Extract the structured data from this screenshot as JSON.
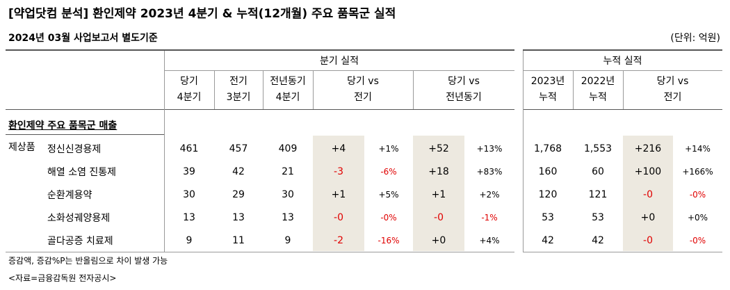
{
  "title": "[약업닷컴 분석] 환인제약 2023년 4분기 & 누적(12개월) 주요 품목군 실적",
  "subtitle": "2024년 03월 사업보고서 별도기준",
  "unit": "(단위: 억원)",
  "quarter_header": "분기 실적",
  "cumul_header": "누적 실적",
  "col_headers": {
    "q_cur": [
      "당기",
      "4분기"
    ],
    "q_prev": [
      "전기",
      "3분기"
    ],
    "q_yoy": [
      "전년동기",
      "4분기"
    ],
    "q_vs_prev": [
      "당기 vs",
      "전기"
    ],
    "q_vs_yoy": [
      "당기 vs",
      "전년동기"
    ],
    "c_2023": [
      "2023년",
      "누적"
    ],
    "c_2022": [
      "2022년",
      "누적"
    ],
    "c_vs": [
      "당기 vs",
      "전기"
    ]
  },
  "section_label": "환인제약 주요 품목군 매출",
  "category_label": "제상품",
  "rows": [
    {
      "name": "정신신경용제",
      "q_cur": "461",
      "q_prev": "457",
      "q_yoy": "409",
      "d_prev": "+4",
      "p_prev": "+1%",
      "d_yoy": "+52",
      "p_yoy": "+13%",
      "c_2023": "1,768",
      "c_2022": "1,553",
      "d_c": "+216",
      "p_c": "+14%",
      "neg": [
        false,
        false,
        false,
        false,
        false,
        false
      ]
    },
    {
      "name": "해열 소염 진통제",
      "q_cur": "39",
      "q_prev": "42",
      "q_yoy": "21",
      "d_prev": "-3",
      "p_prev": "-6%",
      "d_yoy": "+18",
      "p_yoy": "+83%",
      "c_2023": "160",
      "c_2022": "60",
      "d_c": "+100",
      "p_c": "+166%",
      "neg": [
        true,
        true,
        false,
        false,
        false,
        false
      ]
    },
    {
      "name": "순환계용약",
      "q_cur": "30",
      "q_prev": "29",
      "q_yoy": "30",
      "d_prev": "+1",
      "p_prev": "+5%",
      "d_yoy": "+1",
      "p_yoy": "+2%",
      "c_2023": "120",
      "c_2022": "121",
      "d_c": "-0",
      "p_c": "-0%",
      "neg": [
        false,
        false,
        false,
        false,
        true,
        true
      ]
    },
    {
      "name": "소화성궤양용제",
      "q_cur": "13",
      "q_prev": "13",
      "q_yoy": "13",
      "d_prev": "-0",
      "p_prev": "-0%",
      "d_yoy": "-0",
      "p_yoy": "-1%",
      "c_2023": "53",
      "c_2022": "53",
      "d_c": "+0",
      "p_c": "+0%",
      "neg": [
        true,
        true,
        true,
        true,
        false,
        false
      ]
    },
    {
      "name": "골다공증 치료제",
      "q_cur": "9",
      "q_prev": "11",
      "q_yoy": "9",
      "d_prev": "-2",
      "p_prev": "-16%",
      "d_yoy": "+0",
      "p_yoy": "+4%",
      "c_2023": "42",
      "c_2022": "42",
      "d_c": "-0",
      "p_c": "-0%",
      "neg": [
        true,
        true,
        false,
        false,
        true,
        true
      ]
    }
  ],
  "notes": [
    "증감액, 증감%P는 반올림으로 차이 발생 가능",
    "<자료=금융감독원 전자공시>"
  ],
  "colors": {
    "shade": "#ede9e0",
    "negative": "#e00000"
  }
}
